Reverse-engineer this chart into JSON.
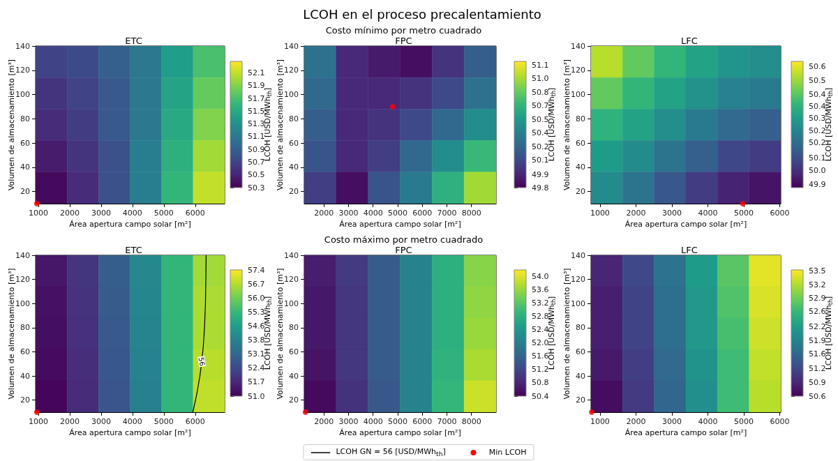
{
  "chart_data": [
    {
      "type": "heatmap",
      "title": "ETC",
      "xlabel": "Área apertura campo solar [m²]",
      "ylabel": "Volumen de almacenamiento [m³]",
      "clabel": "LCOH [USD/MWh$_{th}$]",
      "xlim": [
        910,
        6940
      ],
      "xticks": [
        1000,
        2000,
        3000,
        4000,
        5000,
        6000
      ],
      "ylim": [
        10,
        140
      ],
      "yticks": [
        20,
        40,
        60,
        80,
        100,
        120,
        140
      ],
      "clim": [
        50.3,
        52.28
      ],
      "cticks": [
        50.3,
        50.5,
        50.7,
        50.9,
        51.1,
        51.3,
        51.5,
        51.7,
        51.9,
        52.1
      ],
      "cells": [
        [
          50.7,
          50.75,
          50.9,
          51.1,
          51.4,
          51.7
        ],
        [
          50.6,
          50.7,
          50.85,
          51.1,
          51.45,
          51.8
        ],
        [
          50.55,
          50.65,
          50.85,
          51.1,
          51.5,
          51.9
        ],
        [
          50.45,
          50.6,
          50.8,
          51.15,
          51.55,
          52.0
        ],
        [
          50.35,
          50.55,
          50.8,
          51.15,
          51.6,
          52.1
        ]
      ],
      "series": [
        {
          "type": "scatter",
          "color": "#ff0000",
          "marker": "circle",
          "x": [
            950
          ],
          "values": [
            10
          ]
        }
      ]
    },
    {
      "type": "heatmap",
      "title": "FPC",
      "subtitle": "Costo mínimo por metro cuadrado",
      "annotations": [
        "LCOH en el proceso precalentamiento"
      ],
      "xlabel": "Área apertura campo solar [m²]",
      "ylabel": "Volumen de almacenamiento [m³]",
      "clabel": "LCOH [USD/MWh$_{th}$]",
      "xlim": [
        1200,
        9000
      ],
      "xticks": [
        2000,
        3000,
        4000,
        5000,
        6000,
        7000,
        8000
      ],
      "ylim": [
        10,
        140
      ],
      "yticks": [
        20,
        40,
        60,
        80,
        100,
        120,
        140
      ],
      "clim": [
        49.8,
        51.14
      ],
      "cticks": [
        49.8,
        {
          "value": 49.94,
          "label": "49.9"
        },
        {
          "value": 50.09,
          "label": "50.1"
        },
        {
          "value": 50.23,
          "label": "50.2"
        },
        {
          "value": 50.38,
          "label": "50.4"
        },
        {
          "value": 50.52,
          "label": "50.5"
        },
        {
          "value": 50.67,
          "label": "50.7"
        },
        {
          "value": 50.81,
          "label": "50.8"
        },
        {
          "value": 50.96,
          "label": "51.0"
        },
        51.1
      ],
      "cells": [
        [
          50.3,
          49.95,
          49.9,
          49.85,
          50.0,
          50.2
        ],
        [
          50.25,
          49.95,
          49.95,
          50.0,
          50.1,
          50.3
        ],
        [
          50.2,
          49.95,
          50.0,
          50.1,
          50.25,
          50.45
        ],
        [
          50.15,
          49.95,
          50.05,
          50.25,
          50.45,
          50.7
        ],
        [
          50.05,
          49.85,
          50.15,
          50.35,
          50.65,
          50.95
        ]
      ],
      "series": [
        {
          "type": "scatter",
          "color": "#ff0000",
          "marker": "circle",
          "x": [
            4800
          ],
          "values": [
            90
          ]
        }
      ]
    },
    {
      "type": "heatmap",
      "title": "LFC",
      "xlabel": "Área apertura campo solar [m²]",
      "ylabel": "Volumen de almacenamiento [m³]",
      "clabel": "LCOH [USD/MWh$_{th}$]",
      "xlim": [
        750,
        6030
      ],
      "xticks": [
        1000,
        2000,
        3000,
        4000,
        5000,
        6000
      ],
      "ylim": [
        10,
        140
      ],
      "yticks": [
        20,
        40,
        60,
        80,
        100,
        120,
        140
      ],
      "clim": [
        49.9,
        50.63
      ],
      "cticks": [
        {
          "value": 49.92,
          "label": "49.9"
        },
        {
          "value": 50.0,
          "label": "50.0"
        },
        {
          "value": 50.07,
          "label": "50.1"
        },
        {
          "value": 50.16,
          "label": "50.2"
        },
        {
          "value": 50.23,
          "label": "50.2"
        },
        {
          "value": 50.3,
          "label": "50.3"
        },
        {
          "value": 50.37,
          "label": "50.4"
        },
        {
          "value": 50.44,
          "label": "50.4"
        },
        {
          "value": 50.52,
          "label": "50.5"
        },
        50.6
      ],
      "cells": [
        [
          50.55,
          50.45,
          50.38,
          50.32,
          50.28,
          50.26
        ],
        [
          50.45,
          50.38,
          50.32,
          50.27,
          50.22,
          50.2
        ],
        [
          50.37,
          50.32,
          50.26,
          50.2,
          50.15,
          50.12
        ],
        [
          50.3,
          50.25,
          50.18,
          50.12,
          50.06,
          50.03
        ],
        [
          50.25,
          50.18,
          50.1,
          50.03,
          49.97,
          49.94
        ]
      ],
      "series": [
        {
          "type": "scatter",
          "color": "#ff0000",
          "marker": "circle",
          "x": [
            4970
          ],
          "values": [
            10
          ]
        }
      ]
    },
    {
      "type": "heatmap",
      "title": "ETC",
      "xlabel": "Área apertura campo solar [m²]",
      "ylabel": "Volumen de almacenamiento [m³]",
      "clabel": "LCOH [USD/MWh$_{th}$]",
      "xlim": [
        910,
        6940
      ],
      "xticks": [
        1000,
        2000,
        3000,
        4000,
        5000,
        6000
      ],
      "ylim": [
        10,
        140
      ],
      "yticks": [
        20,
        40,
        60,
        80,
        100,
        120,
        140
      ],
      "clim": [
        51.0,
        57.4
      ],
      "cticks": [
        {
          "value": 51.0,
          "label": "51.0"
        },
        {
          "value": 51.71,
          "label": "51.7"
        },
        {
          "value": 52.42,
          "label": "52.4"
        },
        {
          "value": 53.13,
          "label": "53.1"
        },
        {
          "value": 53.84,
          "label": "53.8"
        },
        {
          "value": 54.56,
          "label": "54.6"
        },
        {
          "value": 55.27,
          "label": "55.3"
        },
        {
          "value": 55.98,
          "label": "56.0"
        },
        {
          "value": 56.69,
          "label": "56.7"
        },
        57.4
      ],
      "cells": [
        [
          51.4,
          52.0,
          52.9,
          54.0,
          55.2,
          56.5
        ],
        [
          51.3,
          51.95,
          52.85,
          53.95,
          55.2,
          56.6
        ],
        [
          51.25,
          51.9,
          52.8,
          53.9,
          55.2,
          56.6
        ],
        [
          51.2,
          51.85,
          52.75,
          53.85,
          55.2,
          56.7
        ],
        [
          51.1,
          51.8,
          52.7,
          53.8,
          55.2,
          56.8
        ]
      ],
      "annotations": [
        {
          "text": "56",
          "x": 6208,
          "y": 52
        }
      ],
      "legend": "bottom",
      "series": [
        {
          "type": "line",
          "name": "LCOH GN = 56 [USD/MWh$_{th}$]",
          "color": "#000000",
          "marker": "none",
          "line_style": "solid",
          "x": [
            5926,
            6050,
            6150,
            6208,
            6260,
            6297,
            6327,
            6340,
            6349
          ],
          "values": [
            10,
            25,
            40,
            52,
            65,
            80,
            100,
            120,
            140
          ]
        },
        {
          "type": "scatter",
          "name": "Min LCOH",
          "color": "#ff0000",
          "marker": "circle",
          "x": [
            950
          ],
          "values": [
            10
          ]
        }
      ]
    },
    {
      "type": "heatmap",
      "title": "FPC",
      "subtitle": "Costo máximo por metro cuadrado",
      "xlabel": "Área apertura campo solar [m²]",
      "ylabel": "Volumen de almacenamiento [m³]",
      "clabel": "LCOH [USD/MWh$_{th}$]",
      "xlim": [
        1200,
        9000
      ],
      "xticks": [
        2000,
        3000,
        4000,
        5000,
        6000,
        7000,
        8000
      ],
      "ylim": [
        10,
        140
      ],
      "yticks": [
        20,
        40,
        60,
        80,
        100,
        120,
        140
      ],
      "clim": [
        50.4,
        54.19
      ],
      "cticks": [
        50.4,
        50.8,
        51.2,
        51.6,
        {
          "value": 52.0,
          "label": "52.0"
        },
        52.4,
        52.8,
        53.2,
        53.6,
        {
          "value": 54.0,
          "label": "54.0"
        }
      ],
      "cells": [
        [
          50.7,
          51.05,
          51.5,
          52.1,
          52.8,
          53.5
        ],
        [
          50.65,
          51.0,
          51.5,
          52.1,
          52.8,
          53.55
        ],
        [
          50.65,
          51.0,
          51.5,
          52.1,
          52.8,
          53.6
        ],
        [
          50.6,
          51.0,
          51.5,
          52.1,
          52.85,
          53.7
        ],
        [
          50.5,
          50.95,
          51.45,
          52.1,
          52.9,
          53.9
        ]
      ],
      "series": [
        {
          "type": "scatter",
          "color": "#ff0000",
          "marker": "circle",
          "x": [
            1250
          ],
          "values": [
            10
          ]
        }
      ]
    },
    {
      "type": "heatmap",
      "title": "LFC",
      "xlabel": "Área apertura campo solar [m²]",
      "ylabel": "Volumen de almacenamiento [m³]",
      "clabel": "LCOH [USD/MWh$_{th}$]",
      "xlim": [
        750,
        6030
      ],
      "xticks": [
        1000,
        2000,
        3000,
        4000,
        5000,
        6000
      ],
      "ylim": [
        10,
        140
      ],
      "yticks": [
        20,
        40,
        60,
        80,
        100,
        120,
        140
      ],
      "clim": [
        50.6,
        53.52
      ],
      "cticks": [
        50.6,
        {
          "value": 50.92,
          "label": "50.9"
        },
        {
          "value": 51.24,
          "label": "51.2"
        },
        {
          "value": 51.57,
          "label": "51.6"
        },
        {
          "value": 51.89,
          "label": "51.9"
        },
        {
          "value": 52.21,
          "label": "52.2"
        },
        {
          "value": 52.56,
          "label": "52.6"
        },
        {
          "value": 52.86,
          "label": "52.9"
        },
        {
          "value": 53.18,
          "label": "53.2"
        },
        53.5
      ],
      "cells": [
        [
          50.9,
          51.25,
          51.7,
          52.2,
          52.75,
          53.4
        ],
        [
          50.85,
          51.2,
          51.65,
          52.15,
          52.7,
          53.35
        ],
        [
          50.85,
          51.2,
          51.65,
          52.15,
          52.65,
          53.3
        ],
        [
          50.8,
          51.15,
          51.6,
          52.1,
          52.6,
          53.25
        ],
        [
          50.7,
          51.1,
          51.55,
          52.05,
          52.6,
          53.2
        ]
      ],
      "series": [
        {
          "type": "scatter",
          "color": "#ff0000",
          "marker": "circle",
          "x": [
            770
          ],
          "values": [
            10
          ]
        }
      ]
    }
  ]
}
